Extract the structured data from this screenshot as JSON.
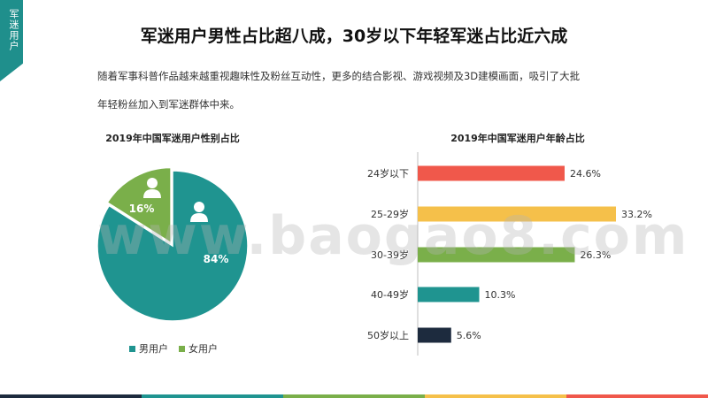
{
  "section_tag": "军迷用户",
  "title": "军迷用户男性占比超八成，30岁以下年轻军迷占比近六成",
  "intro_line1": "随着军事科普作品越来越重视趣味性及粉丝互动性，更多的结合影视、游戏视频及3D建模画面，吸引了大批",
  "intro_line2": "年轻粉丝加入到军迷群体中来。",
  "watermark": "www.baogao8.com",
  "colors": {
    "teal": "#1f9490",
    "green": "#7aaf4a",
    "red": "#f0584b",
    "yellow": "#f5c04a",
    "dark": "#1d2b3e"
  },
  "chart_data": [
    {
      "type": "pie",
      "title": "2019年中国军迷用户性别占比",
      "slices": [
        {
          "name": "男用户",
          "value": 84,
          "label": "84%",
          "color": "#1f9490",
          "icon": "male-user-icon"
        },
        {
          "name": "女用户",
          "value": 16,
          "label": "16%",
          "color": "#7aaf4a",
          "icon": "female-user-icon"
        }
      ],
      "legend": "bottom"
    },
    {
      "type": "bar",
      "orientation": "horizontal",
      "title": "2019年中国军迷用户年龄占比",
      "categories": [
        "24岁以下",
        "25-29岁",
        "30-39岁",
        "40-49岁",
        "50岁以上"
      ],
      "values": [
        24.6,
        33.2,
        26.3,
        10.3,
        5.6
      ],
      "labels": [
        "24.6%",
        "33.2%",
        "26.3%",
        "10.3%",
        "5.6%"
      ],
      "colors": [
        "#f0584b",
        "#f5c04a",
        "#7aaf4a",
        "#1f9490",
        "#1d2b3e"
      ],
      "xlim": [
        0,
        35
      ]
    }
  ],
  "footer_colors": [
    "#1d2b3e",
    "#1f9490",
    "#7aaf4a",
    "#f5c04a",
    "#f0584b"
  ]
}
